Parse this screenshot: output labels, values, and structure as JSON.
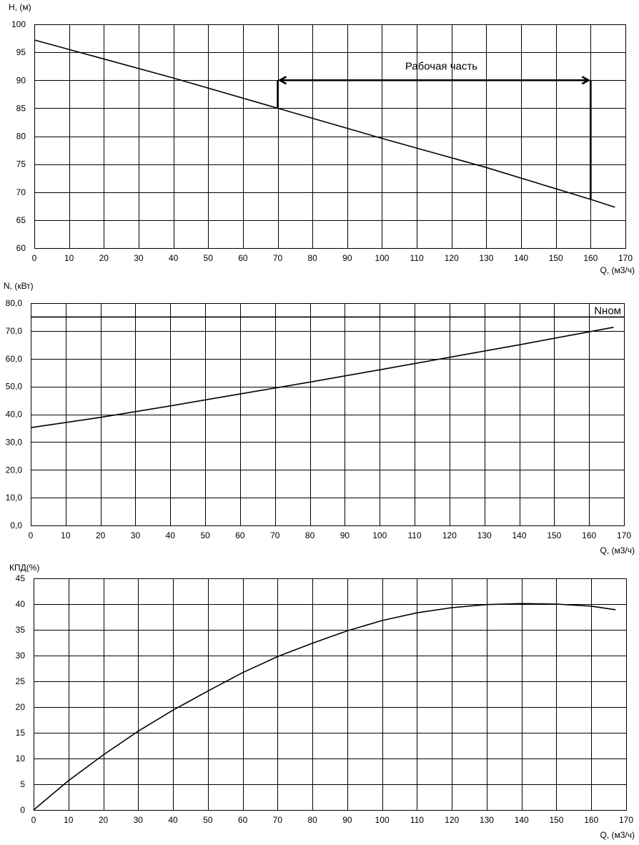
{
  "chart_data": [
    {
      "type": "line",
      "ylabel": "H, (м)",
      "xlabel": "Q, (м3/ч)",
      "xlim": [
        0,
        170
      ],
      "ylim": [
        60,
        100
      ],
      "x_ticks": [
        "0",
        "10",
        "20",
        "30",
        "40",
        "50",
        "60",
        "70",
        "80",
        "90",
        "100",
        "110",
        "120",
        "130",
        "140",
        "150",
        "160",
        "170"
      ],
      "y_ticks": [
        "60",
        "65",
        "70",
        "75",
        "80",
        "85",
        "90",
        "95",
        "100"
      ],
      "grid": true,
      "series": [
        {
          "x": [
            0,
            40,
            70,
            100,
            130,
            160,
            167
          ],
          "values": [
            97.2,
            90.4,
            85.0,
            79.6,
            74.4,
            68.7,
            67.3
          ]
        }
      ],
      "annotations": {
        "working_range_label": "Рабочая часть",
        "working_range_q": [
          70,
          160
        ],
        "working_range_h": 90,
        "working_range_bottom_h": [
          85.0,
          68.7
        ]
      }
    },
    {
      "type": "line",
      "ylabel": "N, (кВт)",
      "xlabel": "Q, (м3/ч)",
      "xlim": [
        0,
        170
      ],
      "ylim": [
        0,
        80
      ],
      "x_ticks": [
        "0",
        "10",
        "20",
        "30",
        "40",
        "50",
        "60",
        "70",
        "80",
        "90",
        "100",
        "110",
        "120",
        "130",
        "140",
        "150",
        "160",
        "170"
      ],
      "y_ticks": [
        "0,0",
        "10,0",
        "20,0",
        "30,0",
        "40,0",
        "50,0",
        "60,0",
        "70,0",
        "80,0"
      ],
      "grid": true,
      "series": [
        {
          "x": [
            0,
            20,
            40,
            60,
            80,
            100,
            120,
            140,
            167
          ],
          "values": [
            35.2,
            38.9,
            43.0,
            47.3,
            51.6,
            56.0,
            60.5,
            65.0,
            71.3
          ]
        }
      ],
      "nominal_line": {
        "label": "Nном",
        "value": 75
      }
    },
    {
      "type": "line",
      "ylabel": "КПД(%)",
      "xlabel": "Q, (м3/ч)",
      "xlim": [
        0,
        170
      ],
      "ylim": [
        0,
        45
      ],
      "x_ticks": [
        "0",
        "10",
        "20",
        "30",
        "40",
        "50",
        "60",
        "70",
        "80",
        "90",
        "100",
        "110",
        "120",
        "130",
        "140",
        "150",
        "160",
        "170"
      ],
      "y_ticks": [
        "0",
        "5",
        "10",
        "15",
        "20",
        "25",
        "30",
        "35",
        "40",
        "45"
      ],
      "grid": true,
      "series": [
        {
          "x": [
            0,
            10,
            20,
            30,
            40,
            50,
            60,
            70,
            80,
            90,
            100,
            110,
            120,
            130,
            140,
            150,
            160,
            167
          ],
          "values": [
            0,
            5.7,
            10.7,
            15.3,
            19.4,
            23.1,
            26.7,
            29.8,
            32.4,
            34.8,
            36.8,
            38.3,
            39.3,
            39.9,
            40.1,
            40.0,
            39.6,
            38.9
          ]
        }
      ]
    }
  ]
}
